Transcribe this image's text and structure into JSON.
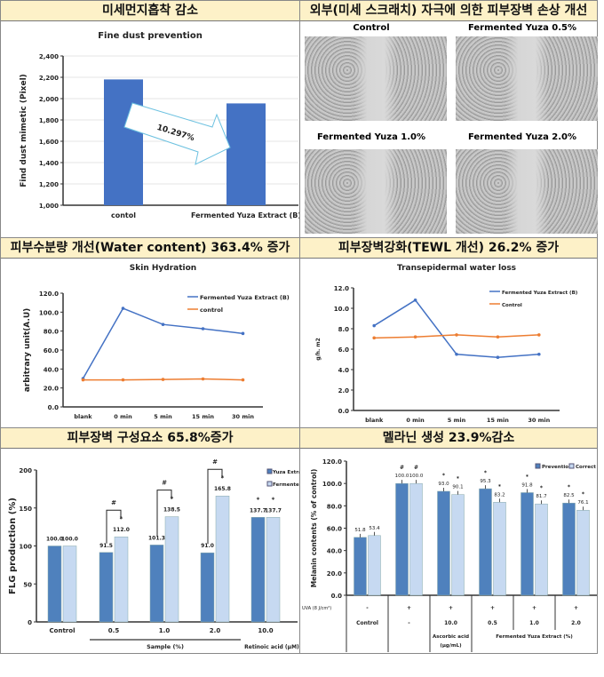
{
  "panels": {
    "dust": {
      "header": "미세먼지흡착 감소"
    },
    "barrier_damage": {
      "header": "외부(미세 스크래치) 자극에 의한 피부장벽 손상 개선",
      "images": [
        "Control",
        "Fermented Yuza 0.5%",
        "Fermented Yuza 1.0%",
        "Fermented Yuza 2.0%"
      ]
    },
    "hydration": {
      "header": "피부수분량 개선(Water content) 363.4% 증가"
    },
    "tewl": {
      "header": "피부장벽강화(TEWL 개선) 26.2% 증가"
    },
    "flg": {
      "header": "피부장벽 구성요소 65.8%증가"
    },
    "melanin": {
      "header": "멜라닌 생성 23.9%감소"
    }
  },
  "chart_data": [
    {
      "id": "dust",
      "type": "bar",
      "title": "Fine dust prevention",
      "ylabel": "Find dust mimetic (Pixel)",
      "categories": [
        "contol",
        "Fermented Yuza Extract  (B)"
      ],
      "values": [
        2180,
        1955
      ],
      "ylim": [
        1000,
        2400
      ],
      "yticks": [
        "1,000",
        "1,200",
        "1,400",
        "1,600",
        "1,800",
        "2,000",
        "2,200",
        "2,400"
      ],
      "annotation": "10.297%",
      "color": "#4472c4"
    },
    {
      "id": "hydration",
      "type": "line",
      "title": "Skin Hydration",
      "ylabel": "arbitrary unit(A.U)",
      "categories": [
        "blank",
        "0 min",
        "5 min",
        "15 min",
        "30 min"
      ],
      "ylim": [
        0,
        120
      ],
      "yticks": [
        "0.0",
        "20.0",
        "40.0",
        "60.0",
        "80.0",
        "100.0",
        "120.0"
      ],
      "legend": "top-right",
      "series": [
        {
          "name": "Fermented Yuza Extract (B)",
          "values": [
            30,
            104,
            87,
            82.5,
            77.5
          ],
          "color": "#4472c4"
        },
        {
          "name": "control",
          "values": [
            28.5,
            28.5,
            29,
            29.5,
            28.5
          ],
          "color": "#ed7d31"
        }
      ]
    },
    {
      "id": "tewl",
      "type": "line",
      "title": "Transepidermal water loss",
      "ylabel": "g/h. m2",
      "categories": [
        "blank",
        "0 min",
        "5 min",
        "15 min",
        "30 min"
      ],
      "ylim": [
        0,
        12
      ],
      "yticks": [
        "0.0",
        "2.0",
        "4.0",
        "6.0",
        "8.0",
        "10.0",
        "12.0"
      ],
      "legend": "top-right",
      "series": [
        {
          "name": "Fermented Yuza Extract (B)",
          "values": [
            8.3,
            10.8,
            5.5,
            5.2,
            5.5
          ],
          "color": "#4472c4"
        },
        {
          "name": "Control",
          "values": [
            7.1,
            7.2,
            7.4,
            7.2,
            7.4
          ],
          "color": "#ed7d31"
        }
      ]
    },
    {
      "id": "flg",
      "type": "bar",
      "ylabel": "FLG production (%)",
      "categories": [
        "Control",
        "0.5",
        "1.0",
        "2.0",
        "10.0"
      ],
      "ylim": [
        0,
        200
      ],
      "yticks": [
        "0",
        "50",
        "100",
        "150",
        "200"
      ],
      "group_labels": [
        "Sample (%)",
        "Retinoic acid (μM)"
      ],
      "series": [
        {
          "name": "Yuza Extrac",
          "values": [
            100.0,
            91.5,
            101.3,
            91.0,
            137.7
          ],
          "labels": [
            "100.0",
            "91.5",
            "101.3",
            "91.0",
            "137.7"
          ],
          "color": "#4f81bd"
        },
        {
          "name": "Fermented",
          "values": [
            100.0,
            112.0,
            138.5,
            165.8,
            137.7
          ],
          "labels": [
            "100.0",
            "112.0",
            "138.5",
            "165.8",
            "137.7"
          ],
          "color": "#c6d9f1"
        }
      ],
      "sig_b": [
        "",
        "*",
        "*",
        "*",
        "*"
      ],
      "sig_a": [
        "",
        "",
        "",
        "",
        "*"
      ],
      "bracket_mark": "#"
    },
    {
      "id": "melanin",
      "type": "bar",
      "ylabel": "Melanin contents (% of control)",
      "categories": [
        "Control",
        "-",
        "10.0",
        "0.5",
        "1.0",
        "2.0"
      ],
      "ylim": [
        0,
        120
      ],
      "yticks": [
        "0.0",
        "20.0",
        "40.0",
        "60.0",
        "80.0",
        "100.0",
        "120.0"
      ],
      "series": [
        {
          "name": "Prevention",
          "values": [
            51.8,
            100.0,
            93.0,
            95.3,
            91.8,
            82.5
          ],
          "labels": [
            "51.8",
            "100.0",
            "93.0",
            "95.3",
            "91.8",
            "82.5"
          ],
          "sig": [
            "",
            "#",
            "*",
            "*",
            "*",
            "*"
          ],
          "color": "#4f81bd"
        },
        {
          "name": "Correct",
          "values": [
            53.4,
            100.0,
            90.1,
            83.2,
            81.7,
            76.1
          ],
          "labels": [
            "53.4",
            "100.0",
            "90.1",
            "83.2",
            "81.7",
            "76.1"
          ],
          "sig": [
            "",
            "#",
            "*",
            "*",
            "*",
            "*"
          ],
          "color": "#c6d9f1"
        }
      ],
      "uva_label": "UVA (8 J/cm²)",
      "uva": [
        "-",
        "+",
        "+",
        "+",
        "+",
        "+"
      ],
      "group_labels": [
        "Ascorbic acid (μg/mL)",
        "Fermented Yuza Extract (%)"
      ]
    }
  ]
}
